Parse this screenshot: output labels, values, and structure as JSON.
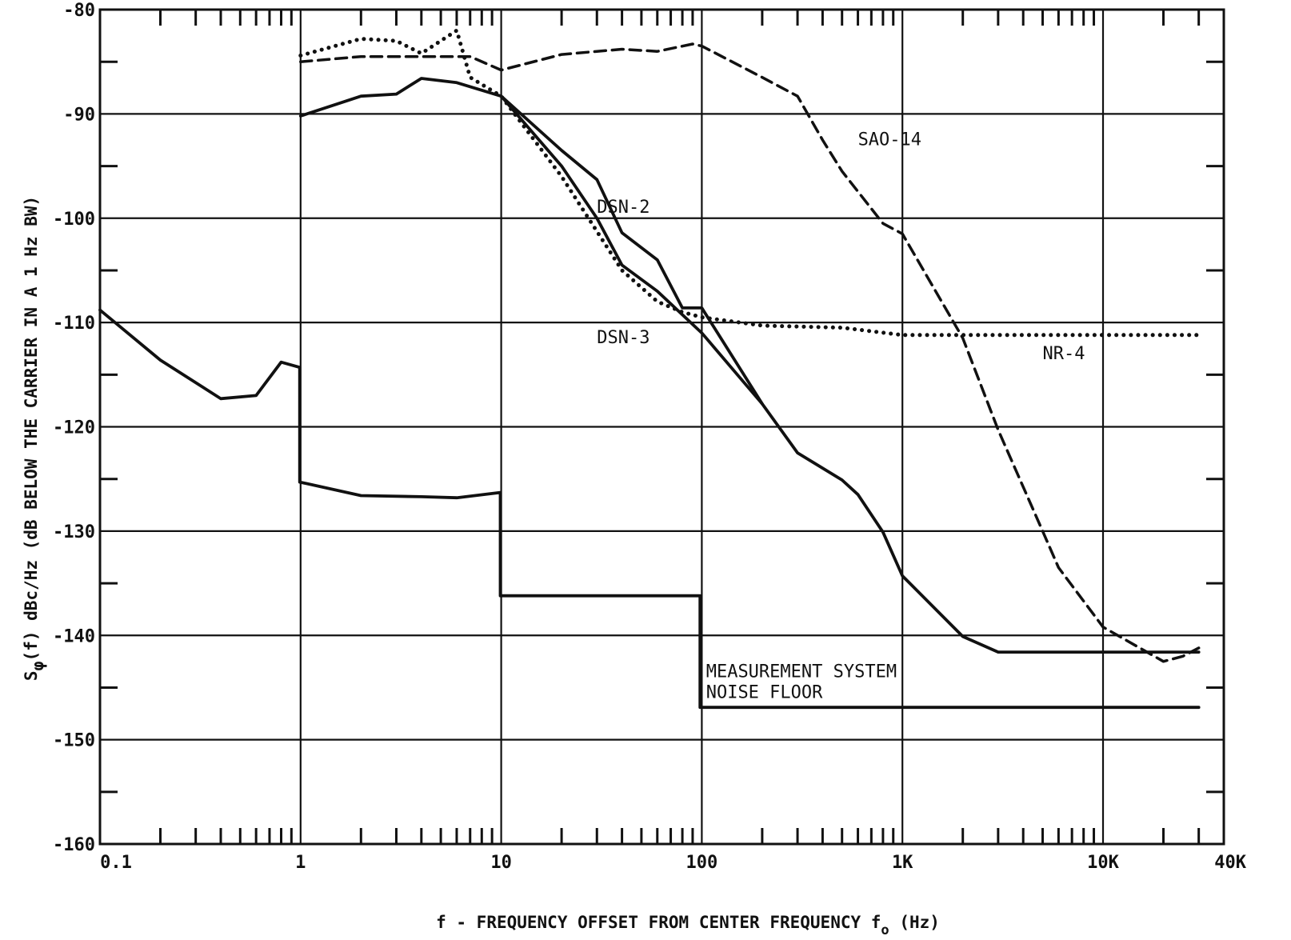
{
  "chart_data": {
    "type": "line",
    "xlabel": "f - FREQUENCY OFFSET FROM CENTER FREQUENCY f",
    "xlabel_subscript": "o",
    "xlabel_unit": "(Hz)",
    "ylabel": "S",
    "ylabel_symbol": "φ",
    "ylabel_rest": "(f) dBc/Hz (dB BELOW THE CARRIER IN A 1 Hz BW)",
    "x_scale": "log",
    "xlim": [
      0.1,
      40000
    ],
    "ylim": [
      -160,
      -80
    ],
    "grid": true,
    "x_ticks": [
      {
        "value": 0.1,
        "label": "0.1"
      },
      {
        "value": 1,
        "label": "1"
      },
      {
        "value": 10,
        "label": "10"
      },
      {
        "value": 100,
        "label": "100"
      },
      {
        "value": 1000,
        "label": "1K"
      },
      {
        "value": 10000,
        "label": "10K"
      },
      {
        "value": 40000,
        "label": "40K"
      }
    ],
    "y_ticks": [
      {
        "value": -80,
        "label": "-80"
      },
      {
        "value": -90,
        "label": "-90"
      },
      {
        "value": -100,
        "label": "-100"
      },
      {
        "value": -110,
        "label": "-110"
      },
      {
        "value": -120,
        "label": "-120"
      },
      {
        "value": -130,
        "label": "-130"
      },
      {
        "value": -140,
        "label": "-140"
      },
      {
        "value": -150,
        "label": "-150"
      },
      {
        "value": -160,
        "label": "-160"
      }
    ],
    "series": [
      {
        "name": "DSN-2",
        "style": "solid",
        "x": [
          1,
          2,
          3,
          4,
          6,
          10,
          20,
          30,
          40,
          60,
          80,
          100,
          200,
          300,
          500,
          600,
          800,
          1000,
          2000,
          3000,
          5000,
          10000,
          20000,
          30000
        ],
        "y": [
          -90.2,
          -88.3,
          -88.1,
          -86.6,
          -87.0,
          -88.3,
          -93.5,
          -96.3,
          -101.4,
          -104.0,
          -108.6,
          -108.6,
          -117.8,
          -122.5,
          -125.1,
          -126.5,
          -130.1,
          -134.3,
          -140.1,
          -141.6,
          -141.6,
          -141.6,
          -141.6,
          -141.6
        ]
      },
      {
        "name": "DSN-3",
        "style": "solid",
        "x": [
          10,
          20,
          30,
          40,
          60,
          100,
          200
        ],
        "y": [
          -88.3,
          -95.0,
          -100.0,
          -104.5,
          -107.0,
          -111.0,
          -117.8
        ]
      },
      {
        "name": "SAO-14",
        "style": "dashed",
        "x": [
          1,
          2,
          3,
          4,
          6,
          7,
          10,
          20,
          40,
          60,
          90,
          100,
          200,
          300,
          400,
          500,
          800,
          1000,
          2000,
          3000,
          5000,
          6000,
          10000,
          20000,
          25000,
          30000
        ],
        "y": [
          -85.0,
          -84.5,
          -84.5,
          -84.5,
          -84.5,
          -84.5,
          -85.8,
          -84.3,
          -83.8,
          -84.0,
          -83.3,
          -83.5,
          -86.5,
          -88.3,
          -92.5,
          -95.5,
          -100.5,
          -101.5,
          -111.5,
          -120.3,
          -130.0,
          -133.5,
          -139.2,
          -142.5,
          -142.0,
          -141.2
        ]
      },
      {
        "name": "NR-4",
        "style": "dotted",
        "x": [
          1,
          2,
          3,
          4,
          6,
          7,
          10,
          20,
          40,
          60,
          80,
          100,
          200,
          500,
          1000,
          2000,
          5000,
          10000,
          20000,
          30000
        ],
        "y": [
          -84.4,
          -82.8,
          -83.0,
          -84.2,
          -82.0,
          -86.5,
          -88.3,
          -96.0,
          -105.0,
          -108.0,
          -109.0,
          -109.5,
          -110.3,
          -110.5,
          -111.2,
          -111.2,
          -111.2,
          -111.2,
          -111.2,
          -111.2
        ]
      },
      {
        "name": "MEASUREMENT SYSTEM NOISE FLOOR",
        "style": "solid",
        "x": [
          0.1,
          0.2,
          0.4,
          0.6,
          0.8,
          0.99,
          0.99,
          2,
          4,
          6,
          9.9,
          9.9,
          98,
          98,
          30000
        ],
        "y": [
          -108.8,
          -113.6,
          -117.3,
          -117.0,
          -113.8,
          -114.3,
          -125.3,
          -126.6,
          -126.7,
          -126.8,
          -126.3,
          -136.2,
          -136.2,
          -146.9,
          -146.9
        ]
      }
    ],
    "annotations": [
      {
        "text": "DSN-2",
        "x": 30,
        "y": -99.5
      },
      {
        "text": "DSN-3",
        "x": 30,
        "y": -112.0
      },
      {
        "text": "SAO-14",
        "x": 600,
        "y": -93.0
      },
      {
        "text": "NR-4",
        "x": 5000,
        "y": -113.5
      },
      {
        "text": "MEASUREMENT SYSTEM",
        "x": 105,
        "y": -144.0
      },
      {
        "text": "NOISE FLOOR",
        "x": 105,
        "y": -146.0
      }
    ]
  }
}
